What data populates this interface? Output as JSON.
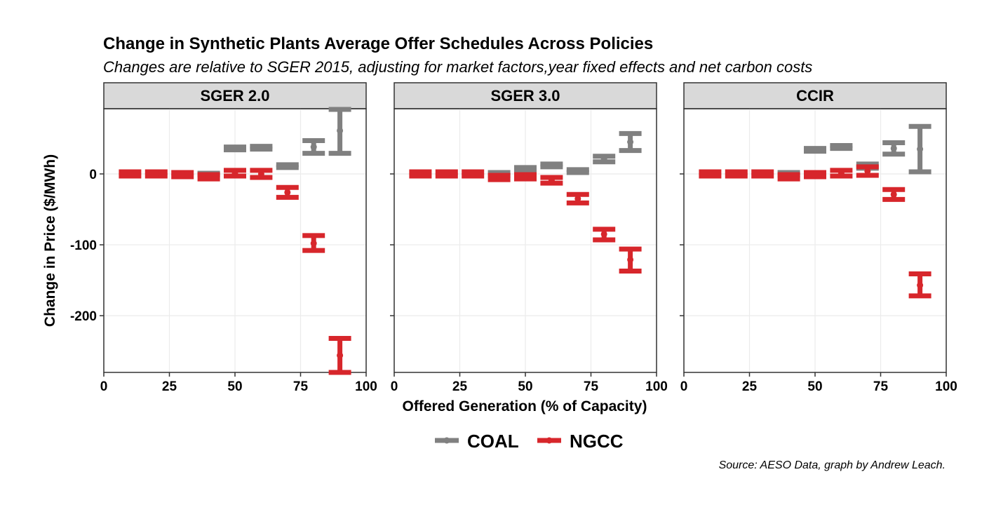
{
  "chart_data": {
    "type": "errorbar",
    "title": "Change in Synthetic Plants Average Offer Schedules Across Policies",
    "subtitle": "Changes are relative to SGER 2015, adjusting for market factors,year fixed effects and net carbon costs",
    "xlabel": "Offered Generation (% of Capacity)",
    "ylabel": "Change in Price ($/MWh)",
    "caption": "Source: AESO Data, graph by Andrew Leach.",
    "xlim": [
      0,
      100
    ],
    "ylim": [
      -280,
      92
    ],
    "x_ticks": [
      0,
      25,
      50,
      75,
      100
    ],
    "y_ticks": [
      0,
      -100,
      -200
    ],
    "x_tick_labels": [
      "0",
      "25",
      "50",
      "75",
      "100"
    ],
    "y_tick_labels": [
      "0",
      "-100",
      "-200"
    ],
    "grid": true,
    "legend_position": "bottom",
    "series_style": [
      {
        "name": "COAL",
        "color": "#808080"
      },
      {
        "name": "NGCC",
        "color": "#D7262B"
      }
    ],
    "panels": [
      {
        "name": "SGER 2.0",
        "series": [
          {
            "name": "COAL",
            "points": [
              {
                "x": 40,
                "y": 0,
                "low": -1,
                "high": 1
              },
              {
                "x": 50,
                "y": 36,
                "low": 34,
                "high": 38
              },
              {
                "x": 60,
                "y": 37,
                "low": 35,
                "high": 39
              },
              {
                "x": 70,
                "y": 11,
                "low": 9,
                "high": 13
              },
              {
                "x": 80,
                "y": 38,
                "low": 29,
                "high": 47
              },
              {
                "x": 90,
                "y": 61,
                "low": 29,
                "high": 91
              }
            ]
          },
          {
            "name": "NGCC",
            "points": [
              {
                "x": 10,
                "y": 0,
                "low": -3,
                "high": 3
              },
              {
                "x": 20,
                "y": 0,
                "low": -3,
                "high": 3
              },
              {
                "x": 30,
                "y": -1,
                "low": -4,
                "high": 2
              },
              {
                "x": 40,
                "y": -4,
                "low": -7,
                "high": -1
              },
              {
                "x": 50,
                "y": 1,
                "low": -3,
                "high": 5
              },
              {
                "x": 60,
                "y": 0,
                "low": -5,
                "high": 5
              },
              {
                "x": 70,
                "y": -26,
                "low": -33,
                "high": -19
              },
              {
                "x": 80,
                "y": -98,
                "low": -108,
                "high": -87
              },
              {
                "x": 90,
                "y": -256,
                "low": -280,
                "high": -232
              }
            ]
          }
        ]
      },
      {
        "name": "SGER 3.0",
        "series": [
          {
            "name": "COAL",
            "points": [
              {
                "x": 40,
                "y": 0,
                "low": -2,
                "high": 2
              },
              {
                "x": 50,
                "y": 7,
                "low": 5,
                "high": 9
              },
              {
                "x": 60,
                "y": 12,
                "low": 10,
                "high": 14
              },
              {
                "x": 70,
                "y": 4,
                "low": 2,
                "high": 6
              },
              {
                "x": 80,
                "y": 21,
                "low": 17,
                "high": 25
              },
              {
                "x": 90,
                "y": 45,
                "low": 33,
                "high": 57
              }
            ]
          },
          {
            "name": "NGCC",
            "points": [
              {
                "x": 10,
                "y": 0,
                "low": -3,
                "high": 3
              },
              {
                "x": 20,
                "y": 0,
                "low": -3,
                "high": 3
              },
              {
                "x": 30,
                "y": 0,
                "low": -3,
                "high": 3
              },
              {
                "x": 40,
                "y": -5,
                "low": -8,
                "high": -2
              },
              {
                "x": 50,
                "y": -4,
                "low": -7,
                "high": -1
              },
              {
                "x": 60,
                "y": -9,
                "low": -13,
                "high": -5
              },
              {
                "x": 70,
                "y": -35,
                "low": -41,
                "high": -29
              },
              {
                "x": 80,
                "y": -85,
                "low": -93,
                "high": -78
              },
              {
                "x": 90,
                "y": -121,
                "low": -137,
                "high": -106
              }
            ]
          }
        ]
      },
      {
        "name": "CCIR",
        "series": [
          {
            "name": "COAL",
            "points": [
              {
                "x": 40,
                "y": 0,
                "low": -2,
                "high": 2
              },
              {
                "x": 50,
                "y": 34,
                "low": 32,
                "high": 36
              },
              {
                "x": 60,
                "y": 38,
                "low": 36,
                "high": 40
              },
              {
                "x": 70,
                "y": 11,
                "low": 8,
                "high": 14
              },
              {
                "x": 80,
                "y": 36,
                "low": 28,
                "high": 44
              },
              {
                "x": 90,
                "y": 35,
                "low": 3,
                "high": 67
              }
            ]
          },
          {
            "name": "NGCC",
            "points": [
              {
                "x": 10,
                "y": 0,
                "low": -3,
                "high": 3
              },
              {
                "x": 20,
                "y": 0,
                "low": -3,
                "high": 3
              },
              {
                "x": 30,
                "y": 0,
                "low": -3,
                "high": 3
              },
              {
                "x": 40,
                "y": -4,
                "low": -7,
                "high": -1
              },
              {
                "x": 50,
                "y": -1,
                "low": -4,
                "high": 2
              },
              {
                "x": 60,
                "y": 1,
                "low": -3,
                "high": 5
              },
              {
                "x": 70,
                "y": 4,
                "low": -2,
                "high": 10
              },
              {
                "x": 80,
                "y": -29,
                "low": -36,
                "high": -22
              },
              {
                "x": 90,
                "y": -157,
                "low": -172,
                "high": -141
              }
            ]
          }
        ]
      }
    ]
  }
}
